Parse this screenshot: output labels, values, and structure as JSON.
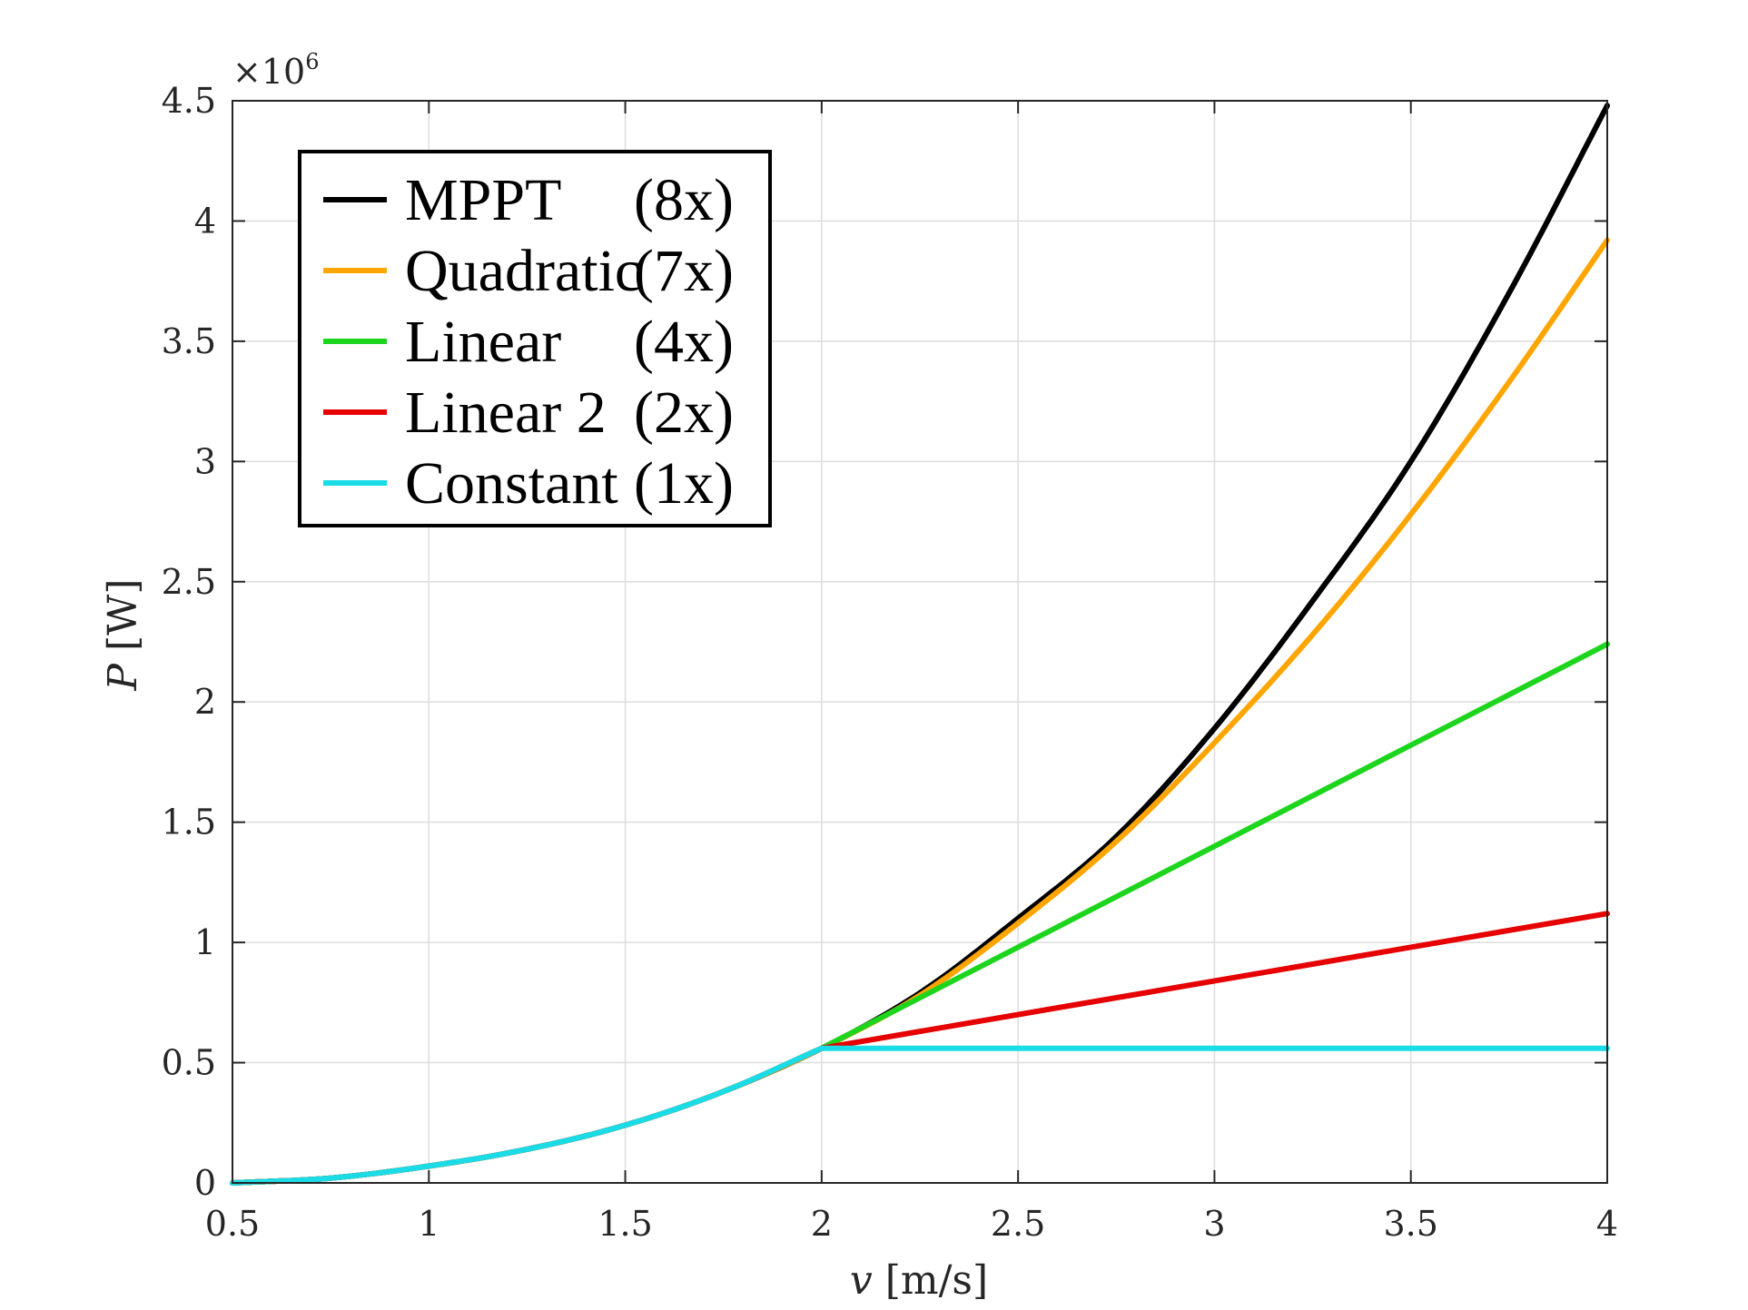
{
  "chart_data": {
    "type": "line",
    "xlabel": {
      "var": "v",
      "unit": " [m/s]"
    },
    "ylabel": {
      "var": "P",
      "unit": " [W]"
    },
    "xlim": [
      0.5,
      4
    ],
    "ylim": [
      0,
      4.5
    ],
    "x_ticks": [
      0.5,
      1,
      1.5,
      2,
      2.5,
      3,
      3.5,
      4
    ],
    "x_tick_labels": [
      "0.5",
      "1",
      "1.5",
      "2",
      "2.5",
      "3",
      "3.5",
      "4"
    ],
    "y_ticks": [
      0,
      0.5,
      1,
      1.5,
      2,
      2.5,
      3,
      3.5,
      4,
      4.5
    ],
    "y_tick_labels": [
      "0",
      "0.5",
      "1",
      "1.5",
      "2",
      "2.5",
      "3",
      "3.5",
      "4",
      "4.5"
    ],
    "y_multiplier": {
      "base": "×10",
      "exponent": "6"
    },
    "grid": true,
    "legend_position": "top-left",
    "series": [
      {
        "name": "MPPT",
        "note": "(8x)",
        "color": "#000000",
        "x": [
          0.5,
          0.75,
          1.0,
          1.25,
          1.5,
          1.75,
          2.0,
          2.25,
          2.5,
          2.75,
          3.0,
          3.25,
          3.5,
          3.75,
          4.0
        ],
        "y": [
          0.0,
          0.02,
          0.07,
          0.14,
          0.24,
          0.38,
          0.56,
          0.79,
          1.1,
          1.44,
          1.89,
          2.42,
          3.0,
          3.7,
          4.48
        ]
      },
      {
        "name": "Quadratic",
        "note": "(7x)",
        "color": "#FFA500",
        "x": [
          0.5,
          0.75,
          1.0,
          1.25,
          1.5,
          1.75,
          2.0,
          2.25,
          2.5,
          2.75,
          3.0,
          3.25,
          3.5,
          3.75,
          4.0
        ],
        "y": [
          0.0,
          0.02,
          0.07,
          0.14,
          0.24,
          0.38,
          0.56,
          0.78,
          1.08,
          1.42,
          1.83,
          2.28,
          2.78,
          3.33,
          3.92
        ]
      },
      {
        "name": "Linear",
        "note": "(4x)",
        "color": "#1ED51E",
        "x": [
          0.5,
          0.75,
          1.0,
          1.25,
          1.5,
          1.75,
          2.0,
          4.0
        ],
        "y": [
          0.0,
          0.02,
          0.07,
          0.14,
          0.24,
          0.38,
          0.56,
          2.24
        ]
      },
      {
        "name": "Linear 2",
        "note": "(2x)",
        "color": "#E60000",
        "x": [
          0.5,
          0.75,
          1.0,
          1.25,
          1.5,
          1.75,
          2.0,
          4.0
        ],
        "y": [
          0.0,
          0.02,
          0.07,
          0.14,
          0.24,
          0.38,
          0.56,
          1.12
        ]
      },
      {
        "name": "Constant",
        "note": "(1x)",
        "color": "#1ADCE6",
        "x": [
          0.5,
          0.75,
          1.0,
          1.25,
          1.5,
          1.75,
          2.0,
          4.0
        ],
        "y": [
          0.0,
          0.02,
          0.07,
          0.14,
          0.24,
          0.38,
          0.56,
          0.56
        ]
      }
    ]
  }
}
